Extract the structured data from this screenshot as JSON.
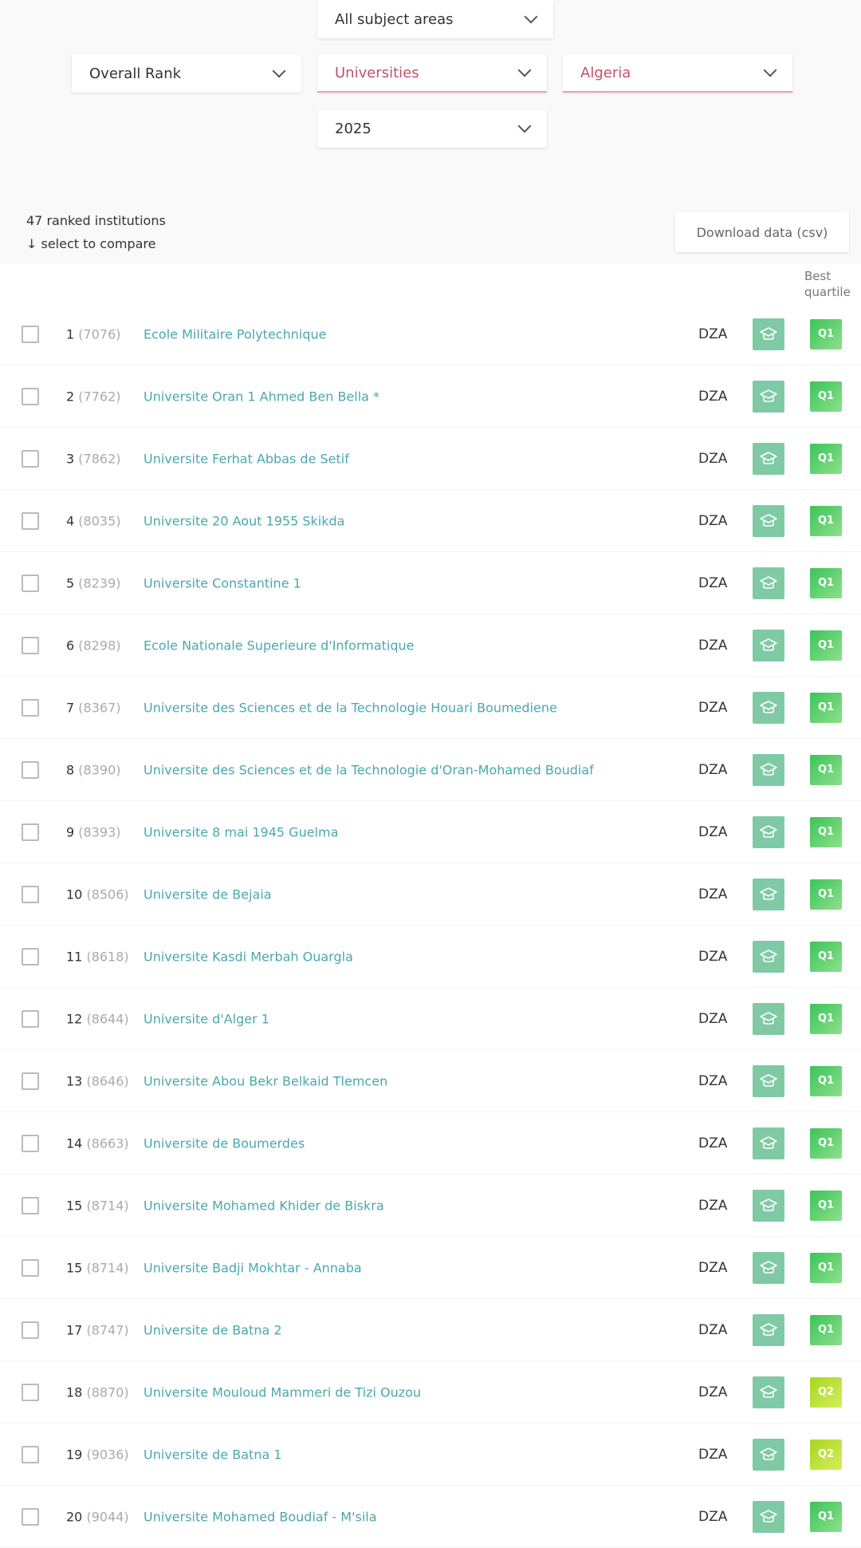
{
  "filters": {
    "subject": "All subject areas",
    "rank_type": "Overall Rank",
    "sector": "Universities",
    "country": "Algeria",
    "year": "2025"
  },
  "summary": {
    "count_text": "47 ranked institutions",
    "compare_hint": "↓ select to compare"
  },
  "download_label": "Download data (csv)",
  "columns": {
    "quartile_line1": "Best",
    "quartile_line2": "quartile"
  },
  "colors": {
    "accent_teal": "#4aa8ad",
    "active_pink": "#c0526a",
    "q1": "#3bc45a",
    "q2": "#a8d620",
    "uni_icon_bg": "#7fcaa4"
  },
  "icons": {
    "university": "graduation-cap-icon"
  },
  "rows": [
    {
      "rank": "1",
      "score": "(7076)",
      "name": "Ecole Militaire Polytechnique",
      "country": "DZA",
      "quartile": "Q1"
    },
    {
      "rank": "2",
      "score": "(7762)",
      "name": "Universite Oran 1 Ahmed Ben Bella *",
      "country": "DZA",
      "quartile": "Q1"
    },
    {
      "rank": "3",
      "score": "(7862)",
      "name": "Universite Ferhat Abbas de Setif",
      "country": "DZA",
      "quartile": "Q1"
    },
    {
      "rank": "4",
      "score": "(8035)",
      "name": "Universite 20 Aout 1955 Skikda",
      "country": "DZA",
      "quartile": "Q1"
    },
    {
      "rank": "5",
      "score": "(8239)",
      "name": "Universite Constantine 1",
      "country": "DZA",
      "quartile": "Q1"
    },
    {
      "rank": "6",
      "score": "(8298)",
      "name": "Ecole Nationale Superieure d'Informatique",
      "country": "DZA",
      "quartile": "Q1"
    },
    {
      "rank": "7",
      "score": "(8367)",
      "name": "Universite des Sciences et de la Technologie Houari Boumediene",
      "country": "DZA",
      "quartile": "Q1"
    },
    {
      "rank": "8",
      "score": "(8390)",
      "name": "Universite des Sciences et de la Technologie d'Oran-Mohamed Boudiaf",
      "country": "DZA",
      "quartile": "Q1"
    },
    {
      "rank": "9",
      "score": "(8393)",
      "name": "Universite 8 mai 1945 Guelma",
      "country": "DZA",
      "quartile": "Q1"
    },
    {
      "rank": "10",
      "score": "(8506)",
      "name": "Universite de Bejaia",
      "country": "DZA",
      "quartile": "Q1"
    },
    {
      "rank": "11",
      "score": "(8618)",
      "name": "Universite Kasdi Merbah Ouargla",
      "country": "DZA",
      "quartile": "Q1"
    },
    {
      "rank": "12",
      "score": "(8644)",
      "name": "Universite d'Alger 1",
      "country": "DZA",
      "quartile": "Q1"
    },
    {
      "rank": "13",
      "score": "(8646)",
      "name": "Universite Abou Bekr Belkaid Tlemcen",
      "country": "DZA",
      "quartile": "Q1"
    },
    {
      "rank": "14",
      "score": "(8663)",
      "name": "Universite de Boumerdes",
      "country": "DZA",
      "quartile": "Q1"
    },
    {
      "rank": "15",
      "score": "(8714)",
      "name": "Universite Mohamed Khider de Biskra",
      "country": "DZA",
      "quartile": "Q1"
    },
    {
      "rank": "15",
      "score": "(8714)",
      "name": "Universite Badji Mokhtar - Annaba",
      "country": "DZA",
      "quartile": "Q1"
    },
    {
      "rank": "17",
      "score": "(8747)",
      "name": "Universite de Batna 2",
      "country": "DZA",
      "quartile": "Q1"
    },
    {
      "rank": "18",
      "score": "(8870)",
      "name": "Universite Mouloud Mammeri de Tizi Ouzou",
      "country": "DZA",
      "quartile": "Q2"
    },
    {
      "rank": "19",
      "score": "(9036)",
      "name": "Universite de Batna 1",
      "country": "DZA",
      "quartile": "Q2"
    },
    {
      "rank": "20",
      "score": "(9044)",
      "name": "Universite Mohamed Boudiaf - M'sila",
      "country": "DZA",
      "quartile": "Q1"
    }
  ]
}
